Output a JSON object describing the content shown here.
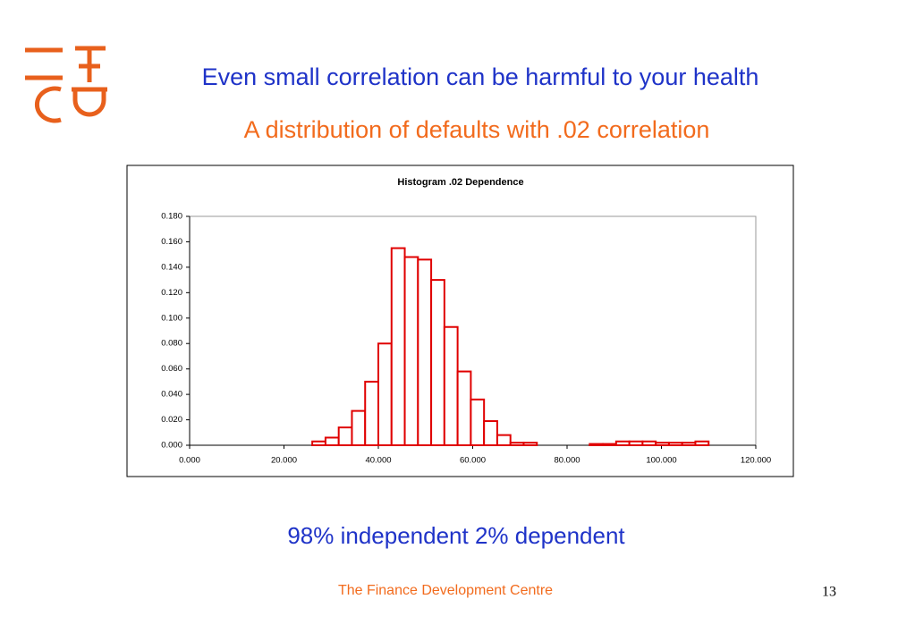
{
  "slide": {
    "title": "Even small correlation can be harmful to your health",
    "subtitle": "A distribution of defaults with .02 correlation",
    "caption": "98% independent 2% dependent",
    "footer": "The Finance Development Centre",
    "page_number": 13
  },
  "chart_data": {
    "type": "histogram",
    "title": "Histogram .02 Dependence",
    "color": "#e00000",
    "bins": [
      26,
      28.8,
      31.6,
      34.4,
      37.2,
      40,
      42.8,
      45.6,
      48.4,
      51.2,
      54,
      56.8,
      59.6,
      62.4,
      65.2,
      68,
      70.8,
      73.6,
      76.4,
      79.2,
      82,
      84.8,
      87.6,
      90.4,
      93.2,
      96,
      98.8,
      101.6,
      104.4,
      107.2,
      110
    ],
    "values": [
      0.003,
      0.006,
      0.014,
      0.027,
      0.05,
      0.08,
      0.155,
      0.148,
      0.146,
      0.13,
      0.093,
      0.058,
      0.036,
      0.019,
      0.008,
      0.002,
      0.002,
      0,
      0,
      0,
      0,
      0.001,
      0.001,
      0.003,
      0.003,
      0.003,
      0.002,
      0.002,
      0.002,
      0.003
    ],
    "xlim": [
      0,
      120
    ],
    "xticks": [
      {
        "value": 0,
        "label": "0.000"
      },
      {
        "value": 20,
        "label": "20.000"
      },
      {
        "value": 40,
        "label": "40.000"
      },
      {
        "value": 60,
        "label": "60.000"
      },
      {
        "value": 80,
        "label": "80.000"
      },
      {
        "value": 100,
        "label": "100.000"
      },
      {
        "value": 120,
        "label": "120.000"
      }
    ],
    "ylim": [
      0,
      0.18
    ],
    "yticks": [
      {
        "value": 0,
        "label": "0.000"
      },
      {
        "value": 0.02,
        "label": "0.020"
      },
      {
        "value": 0.04,
        "label": "0.040"
      },
      {
        "value": 0.06,
        "label": "0.060"
      },
      {
        "value": 0.08,
        "label": "0.080"
      },
      {
        "value": 0.1,
        "label": "0.100"
      },
      {
        "value": 0.12,
        "label": "0.120"
      },
      {
        "value": 0.14,
        "label": "0.140"
      },
      {
        "value": 0.16,
        "label": "0.160"
      },
      {
        "value": 0.18,
        "label": "0.180"
      }
    ],
    "grid": false
  }
}
